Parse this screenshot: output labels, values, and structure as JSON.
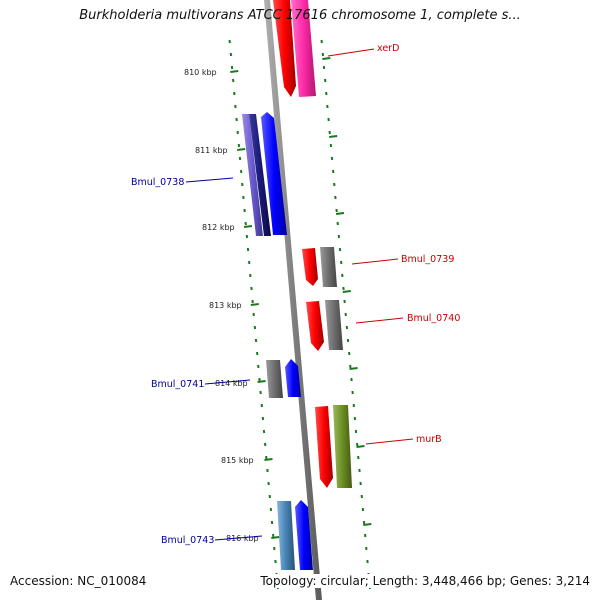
{
  "header": {
    "title": "Burkholderia multivorans ATCC 17616 chromosome 1, complete s..."
  },
  "footer": {
    "accession": "Accession: NC_010084",
    "summary": "Topology: circular; Length: 3,448,466 bp; Genes: 3,214"
  },
  "colors": {
    "forward_label": "#cc0000",
    "reverse_label": "#000099",
    "backbone": "#808080",
    "tick": "#1a7a1a"
  },
  "ticks": [
    {
      "label": "810 kbp"
    },
    {
      "label": "811 kbp"
    },
    {
      "label": "812 kbp"
    },
    {
      "label": "813 kbp"
    },
    {
      "label": "814 kbp"
    },
    {
      "label": "815 kbp"
    },
    {
      "label": "816 kbp"
    }
  ],
  "genes": [
    {
      "label": "xerD",
      "strand": "forward"
    },
    {
      "label": "Bmul_0738",
      "strand": "reverse"
    },
    {
      "label": "Bmul_0739",
      "strand": "forward"
    },
    {
      "label": "Bmul_0740",
      "strand": "forward"
    },
    {
      "label": "Bmul_0741",
      "strand": "reverse"
    },
    {
      "label": "murB",
      "strand": "forward"
    },
    {
      "label": "Bmul_0743",
      "strand": "reverse"
    }
  ]
}
